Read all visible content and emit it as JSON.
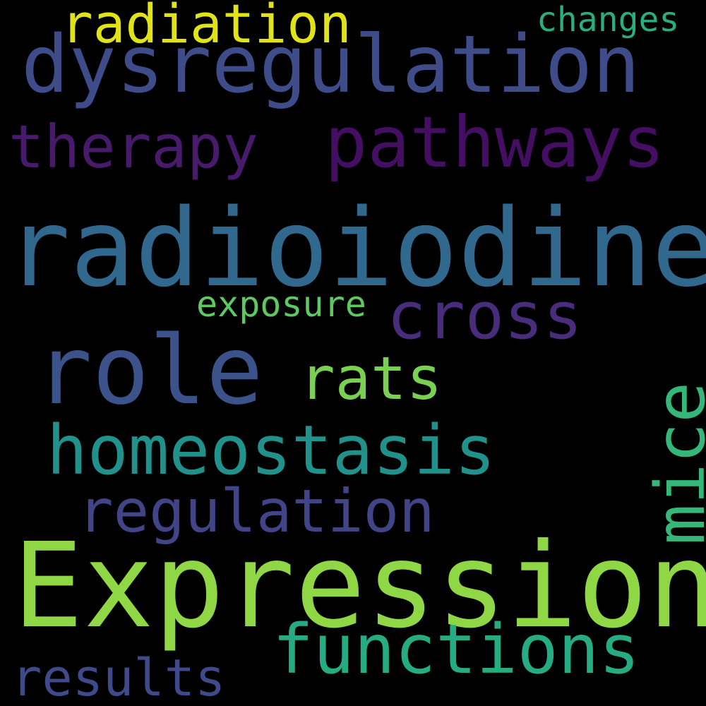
{
  "words": {
    "expression": {
      "text": "Expression",
      "color": "#8fd744"
    },
    "radioiodine": {
      "text": "radioiodine",
      "color": "#31688e"
    },
    "role": {
      "text": "role",
      "color": "#3b528b"
    },
    "dysregulation": {
      "text": "dysregulation",
      "color": "#3e4c8a"
    },
    "pathways": {
      "text": "pathways",
      "color": "#440f62"
    },
    "homeostasis": {
      "text": "homeostasis",
      "color": "#21918c"
    },
    "functions": {
      "text": "functions",
      "color": "#25ac82"
    },
    "cross": {
      "text": "cross",
      "color": "#472d7b"
    },
    "therapy": {
      "text": "therapy",
      "color": "#481a6c"
    },
    "regulation": {
      "text": "regulation",
      "color": "#414487"
    },
    "rats": {
      "text": "rats",
      "color": "#7ad151"
    },
    "mice": {
      "text": "mice",
      "color": "#35b779"
    },
    "radiation": {
      "text": "radiation",
      "color": "#e0e317"
    },
    "results": {
      "text": "results",
      "color": "#3f4a8a"
    },
    "exposure": {
      "text": "exposure",
      "color": "#5ec962"
    },
    "changes": {
      "text": "changes",
      "color": "#29af7f"
    }
  }
}
